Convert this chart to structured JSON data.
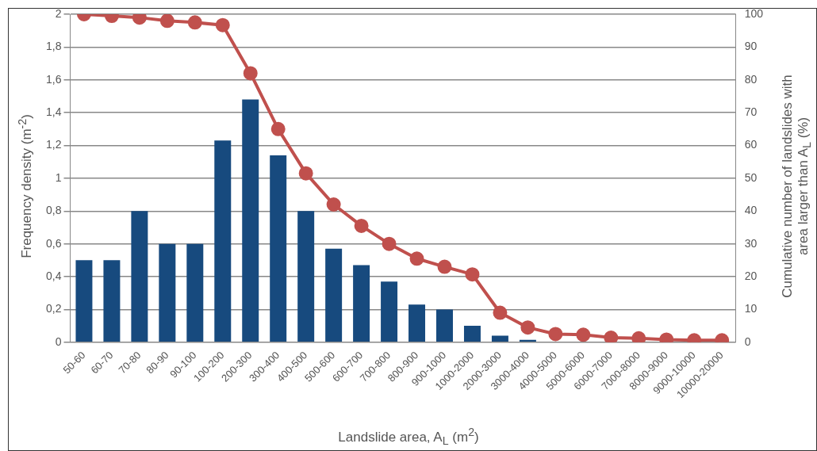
{
  "chart_data": {
    "type": "bar",
    "xlabel": "Landslide area, A$_{L}$ (m$^{2}$)",
    "ylabel": "Frequency density (m$^{-2}$)",
    "y2label": "Cumulative number of landslides with area larger than A$_{L}$ (%)",
    "categories": [
      "50-60",
      "60-70",
      "70-80",
      "80-90",
      "90-100",
      "100-200",
      "200-300",
      "300-400",
      "400-500",
      "500-600",
      "600-700",
      "700-800",
      "800-900",
      "900-1000",
      "1000-2000",
      "2000-3000",
      "3000-4000",
      "4000-5000",
      "5000-6000",
      "6000-7000",
      "7000-8000",
      "8000-9000",
      "9000-10000",
      "10000-20000"
    ],
    "series": [
      {
        "color": "#174a7e",
        "values": [
          0.5,
          0.5,
          0.8,
          0.6,
          0.6,
          1.23,
          1.48,
          1.14,
          0.8,
          0.57,
          0.47,
          0.37,
          0.23,
          0.2,
          0.1,
          0.04,
          0.015,
          0,
          0.004,
          0,
          0,
          0,
          0,
          0
        ]
      },
      {
        "type": "line",
        "axis": "y2",
        "color": "#c0504d",
        "marker": "circle",
        "values": [
          100,
          99.5,
          99,
          98,
          97.5,
          96.7,
          82,
          65,
          51.5,
          42,
          35.5,
          30,
          25.5,
          23,
          20.7,
          9,
          4.5,
          2.5,
          2.3,
          1.4,
          1.2,
          0.8,
          0.6,
          0.6
        ]
      }
    ],
    "ylim": [
      0,
      2
    ],
    "yticks": [
      0,
      {
        "value": 0.2,
        "label": "0,2"
      },
      {
        "value": 0.4,
        "label": "0,4"
      },
      {
        "value": 0.6,
        "label": "0,6"
      },
      {
        "value": 0.8,
        "label": "0,8"
      },
      1,
      {
        "value": 1.2,
        "label": "1,2"
      },
      {
        "value": 1.4,
        "label": "1,4"
      },
      {
        "value": 1.6,
        "label": "1,6"
      },
      {
        "value": 1.8,
        "label": "1,8"
      },
      2
    ],
    "y2lim": [
      0,
      100
    ],
    "y2ticks": [
      0,
      10,
      20,
      30,
      40,
      50,
      60,
      70,
      80,
      90,
      100
    ],
    "grid": "y",
    "legend": false
  }
}
